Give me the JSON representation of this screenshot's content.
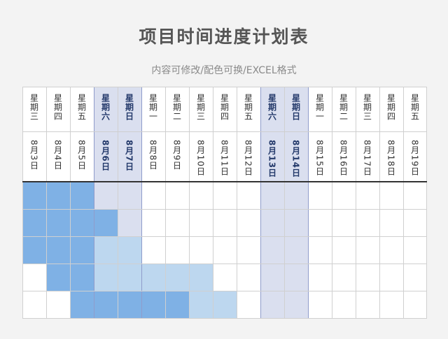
{
  "title": "项目时间进度计划表",
  "subtitle": "内容可修改/配色可换/EXCEL格式",
  "days": [
    {
      "weekday": "星期三",
      "date": "8月3日",
      "weekend": false
    },
    {
      "weekday": "星期四",
      "date": "8月4日",
      "weekend": false
    },
    {
      "weekday": "星期五",
      "date": "8月5日",
      "weekend": false
    },
    {
      "weekday": "星期六",
      "date": "8月6日",
      "weekend": true
    },
    {
      "weekday": "星期日",
      "date": "8月7日",
      "weekend": true
    },
    {
      "weekday": "星期一",
      "date": "8月8日",
      "weekend": false
    },
    {
      "weekday": "星期二",
      "date": "8月9日",
      "weekend": false
    },
    {
      "weekday": "星期三",
      "date": "8月10日",
      "weekend": false
    },
    {
      "weekday": "星期四",
      "date": "8月11日",
      "weekend": false
    },
    {
      "weekday": "星期五",
      "date": "8月12日",
      "weekend": false
    },
    {
      "weekday": "星期六",
      "date": "8月13日",
      "weekend": true
    },
    {
      "weekday": "星期日",
      "date": "8月14日",
      "weekend": true
    },
    {
      "weekday": "星期一",
      "date": "8月15日",
      "weekend": false
    },
    {
      "weekday": "星期二",
      "date": "8月16日",
      "weekend": false
    },
    {
      "weekday": "星期三",
      "date": "8月17日",
      "weekend": false
    },
    {
      "weekday": "星期四",
      "date": "8月18日",
      "weekend": false
    },
    {
      "weekday": "星期五",
      "date": "8月19日",
      "weekend": false
    }
  ],
  "tasks": [
    {
      "start_day": 0,
      "main_days": 3,
      "rest_days": 0
    },
    {
      "start_day": 0,
      "main_days": 4,
      "rest_days": 0
    },
    {
      "start_day": 0,
      "main_days": 3,
      "rest_days": 2
    },
    {
      "start_day": 1,
      "main_days": 2,
      "rest_days": 5
    },
    {
      "start_day": 2,
      "main_days": 5,
      "rest_days": 2
    }
  ],
  "colors": {
    "bar_main": "#7fb1e5",
    "bar_rest": "#bdd7ef",
    "weekend_shade": "#dadfef"
  }
}
